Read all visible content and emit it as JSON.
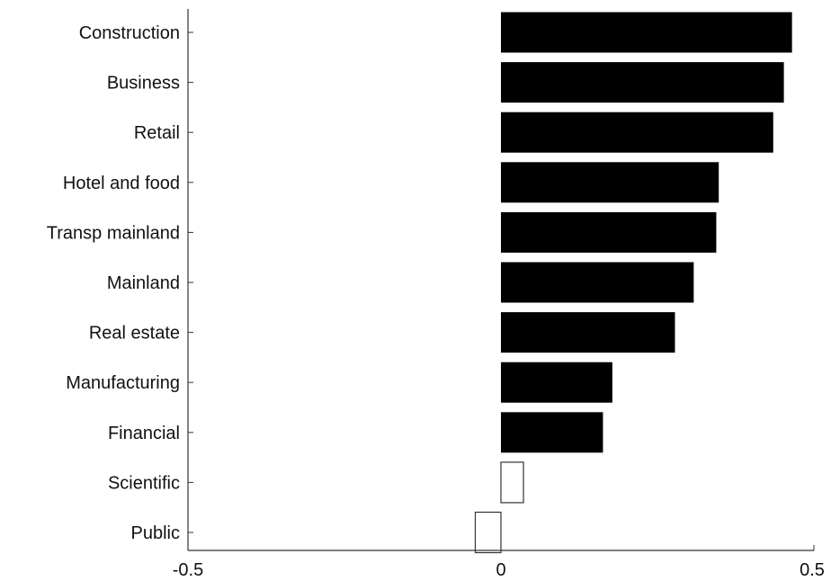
{
  "chart_data": {
    "type": "bar",
    "orientation": "horizontal",
    "title": "",
    "xlabel": "",
    "ylabel": "",
    "xlim": [
      -0.5,
      0.5
    ],
    "xticks": [
      {
        "value": -0.5,
        "label": "-0.5"
      },
      {
        "value": 0,
        "label": "0"
      },
      {
        "value": 0.5,
        "label": "0.5"
      }
    ],
    "grid": false,
    "legend": "none",
    "bar_style": {
      "filled_color": "#000000",
      "hollow_fill": "#ffffff",
      "hollow_stroke": "#333333"
    },
    "categories": [
      "Construction",
      "Business",
      "Retail",
      "Hotel and food",
      "Transp mainland",
      "Mainland",
      "Real estate",
      "Manufacturing",
      "Financial",
      "Scientific",
      "Public"
    ],
    "values": [
      0.465,
      0.452,
      0.435,
      0.348,
      0.344,
      0.308,
      0.278,
      0.178,
      0.163,
      0.036,
      -0.041
    ],
    "filled": [
      true,
      true,
      true,
      true,
      true,
      true,
      true,
      true,
      true,
      false,
      false
    ]
  }
}
